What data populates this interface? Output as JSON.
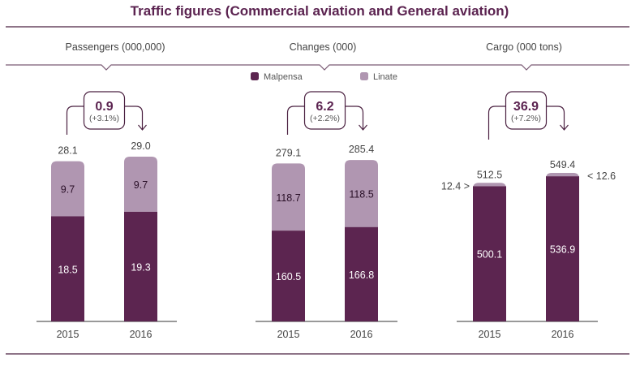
{
  "chart_data": {
    "type": "bar",
    "stacked": true,
    "title": "Traffic figures (Commercial aviation and General aviation)",
    "legend": {
      "placement": "top-center",
      "entries": [
        {
          "name": "Malpensa",
          "color": "#5c2550"
        },
        {
          "name": "Linate",
          "color": "#b096b1"
        }
      ]
    },
    "panels": [
      {
        "title": "Passengers (000,000)",
        "categories": [
          "2015",
          "2016"
        ],
        "series": [
          {
            "name": "Malpensa",
            "values": [
              18.5,
              19.3
            ]
          },
          {
            "name": "Linate",
            "values": [
              9.7,
              9.7
            ]
          }
        ],
        "totals": [
          "28.1",
          "29.0"
        ],
        "segment_labels": [
          [
            "18.5",
            "19.3"
          ],
          [
            "9.7",
            "9.7"
          ]
        ],
        "change": {
          "value": "0.9",
          "percent": "(+3.1%)"
        },
        "linate_label_outside": false
      },
      {
        "title": "Changes (000)",
        "categories": [
          "2015",
          "2016"
        ],
        "series": [
          {
            "name": "Malpensa",
            "values": [
              160.5,
              166.8
            ]
          },
          {
            "name": "Linate",
            "values": [
              118.7,
              118.5
            ]
          }
        ],
        "totals": [
          "279.1",
          "285.4"
        ],
        "segment_labels": [
          [
            "160.5",
            "166.8"
          ],
          [
            "118.7",
            "118.5"
          ]
        ],
        "change": {
          "value": "6.2",
          "percent": "(+2.2%)"
        },
        "linate_label_outside": false
      },
      {
        "title": "Cargo (000 tons)",
        "categories": [
          "2015",
          "2016"
        ],
        "series": [
          {
            "name": "Malpensa",
            "values": [
              500.1,
              536.9
            ]
          },
          {
            "name": "Linate",
            "values": [
              12.4,
              12.6
            ]
          }
        ],
        "totals": [
          "512.5",
          "549.4"
        ],
        "segment_labels": [
          [
            "500.1",
            "536.9"
          ],
          [
            "12.4 >",
            "< 12.6"
          ]
        ],
        "change": {
          "value": "36.9",
          "percent": "(+7.2%)"
        },
        "linate_label_outside": true
      }
    ]
  },
  "colors": {
    "malpensa": "#5c2550",
    "linate": "#b096b1",
    "accent": "#5b2350",
    "rule": "#4a2040"
  }
}
